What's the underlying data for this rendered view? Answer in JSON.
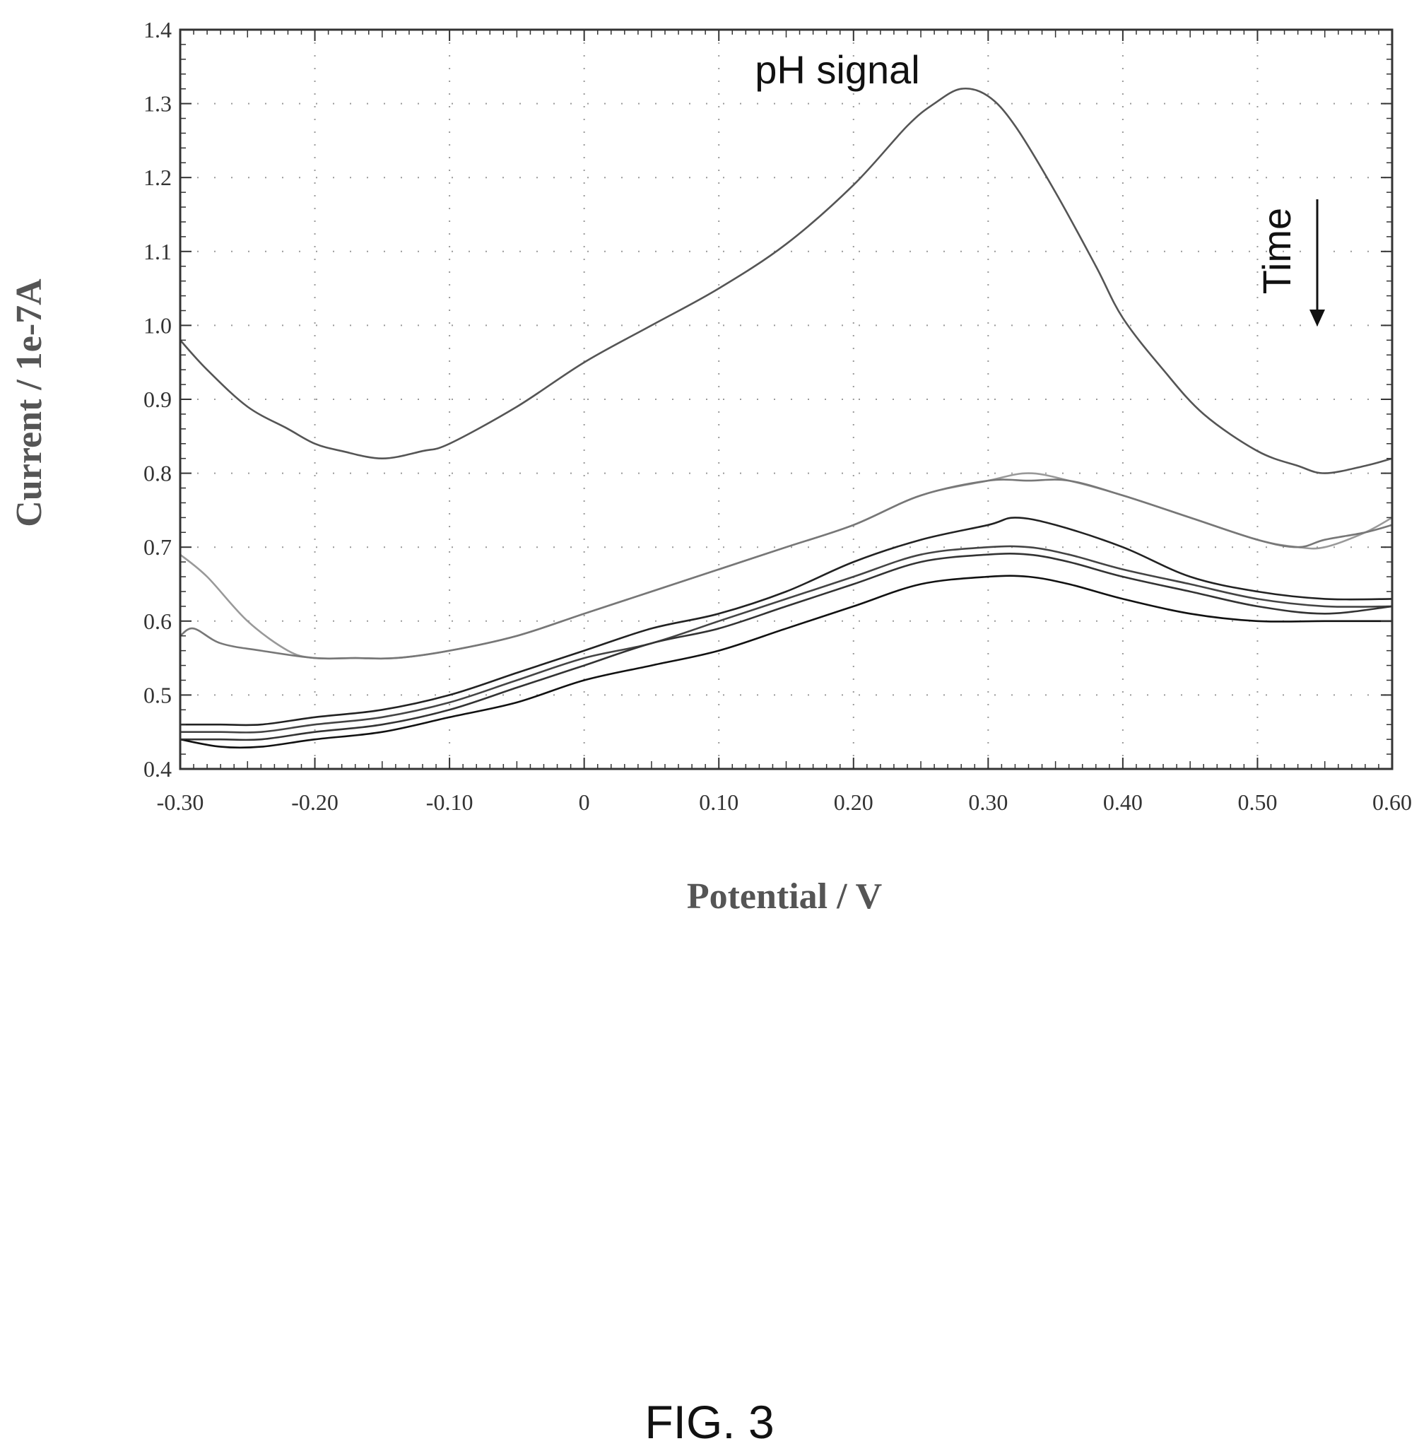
{
  "chart_data": {
    "type": "line",
    "xlabel": "Potential / V",
    "ylabel": "Current / 1e-7A",
    "xlim": [
      -0.3,
      0.6
    ],
    "ylim": [
      0.4,
      1.4
    ],
    "x_ticks": [
      "-0.30",
      "-0.20",
      "-0.10",
      "0",
      "0.10",
      "0.20",
      "0.30",
      "0.40",
      "0.50",
      "0.60"
    ],
    "y_ticks": [
      "0.4",
      "0.5",
      "0.6",
      "0.7",
      "0.8",
      "0.9",
      "1.0",
      "1.1",
      "1.2",
      "1.3",
      "1.4"
    ],
    "grid": true,
    "annotations": {
      "peak_label": "pH signal",
      "time_label": "Time",
      "time_arrow": "down"
    },
    "series": [
      {
        "color": "#555555",
        "x": [
          -0.3,
          -0.28,
          -0.25,
          -0.22,
          -0.2,
          -0.18,
          -0.15,
          -0.12,
          -0.1,
          -0.05,
          0.0,
          0.05,
          0.1,
          0.15,
          0.2,
          0.24,
          0.26,
          0.28,
          0.3,
          0.32,
          0.35,
          0.38,
          0.4,
          0.43,
          0.46,
          0.5,
          0.53,
          0.55,
          0.58,
          0.6
        ],
        "y": [
          0.98,
          0.94,
          0.89,
          0.86,
          0.84,
          0.83,
          0.82,
          0.83,
          0.84,
          0.89,
          0.95,
          1.0,
          1.05,
          1.11,
          1.19,
          1.27,
          1.3,
          1.32,
          1.31,
          1.27,
          1.18,
          1.08,
          1.01,
          0.94,
          0.88,
          0.83,
          0.81,
          0.8,
          0.81,
          0.82
        ]
      },
      {
        "color": "#999999",
        "x": [
          -0.3,
          -0.28,
          -0.25,
          -0.22,
          -0.2,
          -0.17,
          -0.14,
          -0.1,
          -0.05,
          0.0,
          0.05,
          0.1,
          0.15,
          0.2,
          0.25,
          0.3,
          0.33,
          0.36,
          0.4,
          0.45,
          0.5,
          0.53,
          0.55,
          0.58,
          0.6
        ],
        "y": [
          0.69,
          0.66,
          0.6,
          0.56,
          0.55,
          0.55,
          0.55,
          0.56,
          0.58,
          0.61,
          0.64,
          0.67,
          0.7,
          0.73,
          0.77,
          0.79,
          0.8,
          0.79,
          0.77,
          0.74,
          0.71,
          0.7,
          0.7,
          0.72,
          0.74
        ]
      },
      {
        "color": "#777777",
        "x": [
          -0.3,
          -0.29,
          -0.27,
          -0.24,
          -0.2,
          -0.17,
          -0.14,
          -0.1,
          -0.05,
          0.0,
          0.05,
          0.1,
          0.15,
          0.2,
          0.25,
          0.3,
          0.33,
          0.36,
          0.4,
          0.45,
          0.5,
          0.53,
          0.55,
          0.58,
          0.6
        ],
        "y": [
          0.58,
          0.59,
          0.57,
          0.56,
          0.55,
          0.55,
          0.55,
          0.56,
          0.58,
          0.61,
          0.64,
          0.67,
          0.7,
          0.73,
          0.77,
          0.79,
          0.79,
          0.79,
          0.77,
          0.74,
          0.71,
          0.7,
          0.71,
          0.72,
          0.73
        ]
      },
      {
        "color": "#222222",
        "x": [
          -0.3,
          -0.27,
          -0.24,
          -0.2,
          -0.15,
          -0.1,
          -0.05,
          0.0,
          0.05,
          0.1,
          0.15,
          0.2,
          0.25,
          0.3,
          0.32,
          0.35,
          0.4,
          0.45,
          0.5,
          0.55,
          0.6
        ],
        "y": [
          0.46,
          0.46,
          0.46,
          0.47,
          0.48,
          0.5,
          0.53,
          0.56,
          0.59,
          0.61,
          0.64,
          0.68,
          0.71,
          0.73,
          0.74,
          0.73,
          0.7,
          0.66,
          0.64,
          0.63,
          0.63
        ]
      },
      {
        "color": "#444444",
        "x": [
          -0.3,
          -0.27,
          -0.24,
          -0.2,
          -0.15,
          -0.1,
          -0.05,
          0.0,
          0.05,
          0.1,
          0.15,
          0.2,
          0.25,
          0.3,
          0.33,
          0.36,
          0.4,
          0.45,
          0.5,
          0.55,
          0.6
        ],
        "y": [
          0.45,
          0.45,
          0.45,
          0.46,
          0.47,
          0.49,
          0.52,
          0.55,
          0.57,
          0.6,
          0.63,
          0.66,
          0.69,
          0.7,
          0.7,
          0.69,
          0.67,
          0.65,
          0.63,
          0.62,
          0.62
        ]
      },
      {
        "color": "#333333",
        "x": [
          -0.3,
          -0.27,
          -0.24,
          -0.2,
          -0.15,
          -0.1,
          -0.05,
          0.0,
          0.05,
          0.1,
          0.15,
          0.2,
          0.25,
          0.3,
          0.33,
          0.36,
          0.4,
          0.45,
          0.5,
          0.55,
          0.6
        ],
        "y": [
          0.44,
          0.44,
          0.44,
          0.45,
          0.46,
          0.48,
          0.51,
          0.54,
          0.57,
          0.59,
          0.62,
          0.65,
          0.68,
          0.69,
          0.69,
          0.68,
          0.66,
          0.64,
          0.62,
          0.61,
          0.62
        ]
      },
      {
        "color": "#111111",
        "x": [
          -0.3,
          -0.27,
          -0.24,
          -0.2,
          -0.15,
          -0.1,
          -0.05,
          0.0,
          0.05,
          0.1,
          0.15,
          0.2,
          0.25,
          0.3,
          0.33,
          0.36,
          0.4,
          0.45,
          0.5,
          0.55,
          0.6
        ],
        "y": [
          0.44,
          0.43,
          0.43,
          0.44,
          0.45,
          0.47,
          0.49,
          0.52,
          0.54,
          0.56,
          0.59,
          0.62,
          0.65,
          0.66,
          0.66,
          0.65,
          0.63,
          0.61,
          0.6,
          0.6,
          0.6
        ]
      }
    ]
  },
  "figure": {
    "caption": "FIG. 3"
  }
}
